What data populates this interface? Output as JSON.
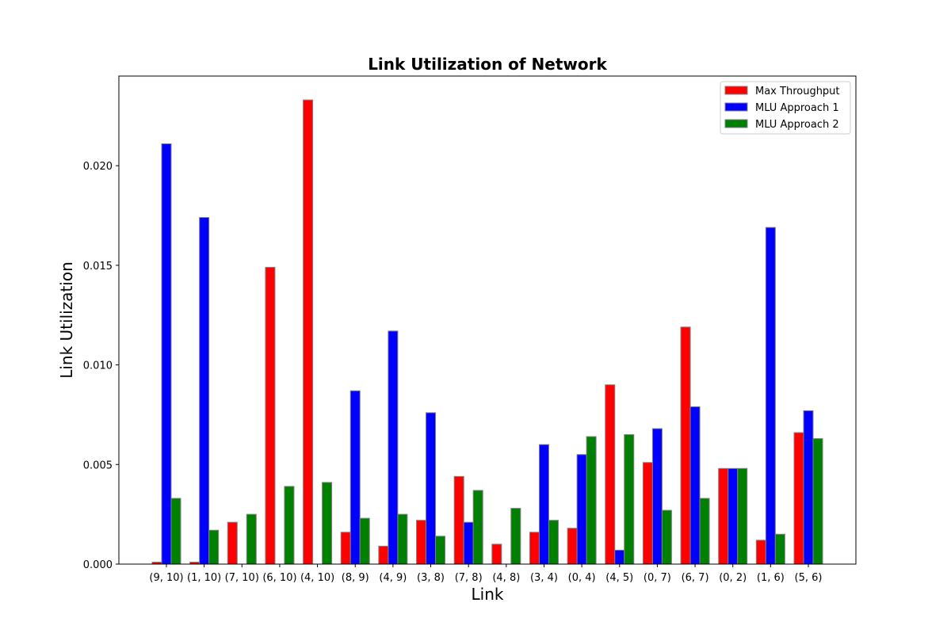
{
  "chart_data": {
    "type": "bar",
    "title": "Link Utilization of Network",
    "xlabel": "Link",
    "ylabel": "Link Utilization",
    "ylim": [
      0,
      0.0245
    ],
    "yticks": [
      "0.000",
      "0.005",
      "0.010",
      "0.015",
      "0.020"
    ],
    "ytick_values": [
      0.0,
      0.005,
      0.01,
      0.015,
      0.02
    ],
    "grid": false,
    "legend_position": "top-right",
    "categories": [
      "(9, 10)",
      "(1, 10)",
      "(7, 10)",
      "(6, 10)",
      "(4, 10)",
      "(8, 9)",
      "(4, 9)",
      "(3, 8)",
      "(7, 8)",
      "(4, 8)",
      "(3, 4)",
      "(0, 4)",
      "(4, 5)",
      "(0, 7)",
      "(6, 7)",
      "(0, 2)",
      "(1, 6)",
      "(5, 6)"
    ],
    "series": [
      {
        "name": "Max Throughput",
        "color": "#ff0000",
        "values": [
          0.0001,
          0.0001,
          0.0021,
          0.0149,
          0.0233,
          0.0016,
          0.0009,
          0.0022,
          0.0044,
          0.001,
          0.0016,
          0.0018,
          0.009,
          0.0051,
          0.0119,
          0.0048,
          0.0012,
          0.0066
        ]
      },
      {
        "name": "MLU Approach 1",
        "color": "#0000ff",
        "values": [
          0.0211,
          0.0174,
          0.0,
          0.0,
          0.0,
          0.0087,
          0.0117,
          0.0076,
          0.0021,
          0.0,
          0.006,
          0.0055,
          0.0007,
          0.0068,
          0.0079,
          0.0048,
          0.0169,
          0.0077
        ]
      },
      {
        "name": "MLU Approach 2",
        "color": "#008000",
        "values": [
          0.0033,
          0.0017,
          0.0025,
          0.0039,
          0.0041,
          0.0023,
          0.0025,
          0.0014,
          0.0037,
          0.0028,
          0.0022,
          0.0064,
          0.0065,
          0.0027,
          0.0033,
          0.0048,
          0.0015,
          0.0063
        ]
      }
    ]
  }
}
